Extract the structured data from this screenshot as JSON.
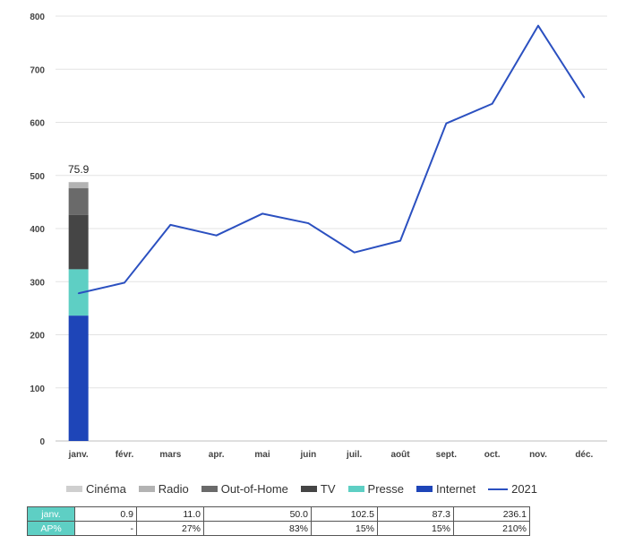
{
  "chart_data": {
    "type": "bar+line",
    "categories": [
      "janv.",
      "févr.",
      "mars",
      "apr.",
      "mai",
      "juin",
      "juil.",
      "août",
      "sept.",
      "oct.",
      "nov.",
      "déc."
    ],
    "yticks": [
      0,
      100,
      200,
      300,
      400,
      500,
      600,
      700,
      800
    ],
    "ylim": [
      0,
      800
    ],
    "stacked_bar": {
      "category": "janv.",
      "total_label": "75.9",
      "segments": [
        {
          "name": "Internet",
          "value": 236.1,
          "color": "#1e45b8"
        },
        {
          "name": "Presse",
          "value": 87.3,
          "color": "#5ecfc4"
        },
        {
          "name": "TV",
          "value": 102.5,
          "color": "#454545"
        },
        {
          "name": "Out-of-Home",
          "value": 50.0,
          "color": "#6a6a6a"
        },
        {
          "name": "Radio",
          "value": 11.0,
          "color": "#b3b3b3"
        },
        {
          "name": "Cinéma",
          "value": 0.9,
          "color": "#cfcfcf"
        }
      ]
    },
    "line_series": {
      "name": "2021",
      "color": "#2b50c0",
      "values": [
        278,
        298,
        407,
        387,
        428,
        410,
        355,
        377,
        598,
        635,
        782,
        647
      ]
    },
    "legend": [
      {
        "name": "Cinéma",
        "color": "#cfcfcf",
        "kind": "box"
      },
      {
        "name": "Radio",
        "color": "#b3b3b3",
        "kind": "box"
      },
      {
        "name": "Out-of-Home",
        "color": "#6a6a6a",
        "kind": "box"
      },
      {
        "name": "TV",
        "color": "#454545",
        "kind": "box"
      },
      {
        "name": "Presse",
        "color": "#5ecfc4",
        "kind": "box"
      },
      {
        "name": "Internet",
        "color": "#1e45b8",
        "kind": "box"
      },
      {
        "name": "2021",
        "color": "#2b50c0",
        "kind": "line"
      }
    ],
    "legend_position": "bottom",
    "grid": true
  },
  "table": {
    "rows": [
      {
        "head": "janv.",
        "cells": [
          "0.9",
          "11.0",
          "50.0",
          "102.5",
          "87.3",
          "236.1"
        ]
      },
      {
        "head": "AP%",
        "cells": [
          "-",
          "27%",
          "83%",
          "15%",
          "15%",
          "210%"
        ]
      }
    ]
  }
}
